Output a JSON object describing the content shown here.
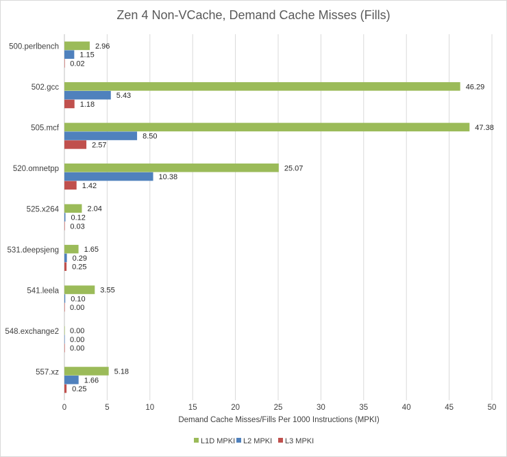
{
  "chart_data": {
    "type": "bar",
    "orientation": "horizontal",
    "title": "Zen 4 Non-VCache, Demand Cache Misses (Fills)",
    "xlabel": "Demand Cache Misses/Fills Per 1000 Instructions (MPKI)",
    "ylabel": "",
    "xlim": [
      0,
      50
    ],
    "xticks": [
      0,
      5,
      10,
      15,
      20,
      25,
      30,
      35,
      40,
      45,
      50
    ],
    "grid": true,
    "legend_position": "bottom",
    "categories": [
      "500.perlbench",
      "502.gcc",
      "505.mcf",
      "520.omnetpp",
      "525.x264",
      "531.deepsjeng",
      "541.leela",
      "548.exchange2",
      "557.xz"
    ],
    "series": [
      {
        "name": "L1D MPKI",
        "color": "#9BBB59",
        "values": [
          2.96,
          46.29,
          47.38,
          25.07,
          2.04,
          1.65,
          3.55,
          0.0,
          5.18
        ],
        "labels": [
          "2.96",
          "46.29",
          "47.38",
          "25.07",
          "2.04",
          "1.65",
          "3.55",
          "0.00",
          "5.18"
        ]
      },
      {
        "name": "L2 MPKI",
        "color": "#4F81BD",
        "values": [
          1.15,
          5.43,
          8.5,
          10.38,
          0.12,
          0.29,
          0.1,
          0.0,
          1.66
        ],
        "labels": [
          "1.15",
          "5.43",
          "8.50",
          "10.38",
          "0.12",
          "0.29",
          "0.10",
          "0.00",
          "1.66"
        ]
      },
      {
        "name": "L3 MPKI",
        "color": "#C0504D",
        "values": [
          0.02,
          1.18,
          2.57,
          1.42,
          0.03,
          0.25,
          0.0,
          0.0,
          0.25
        ],
        "labels": [
          "0.02",
          "1.18",
          "2.57",
          "1.42",
          "0.03",
          "0.25",
          "0.00",
          "0.00",
          "0.25"
        ]
      }
    ]
  }
}
